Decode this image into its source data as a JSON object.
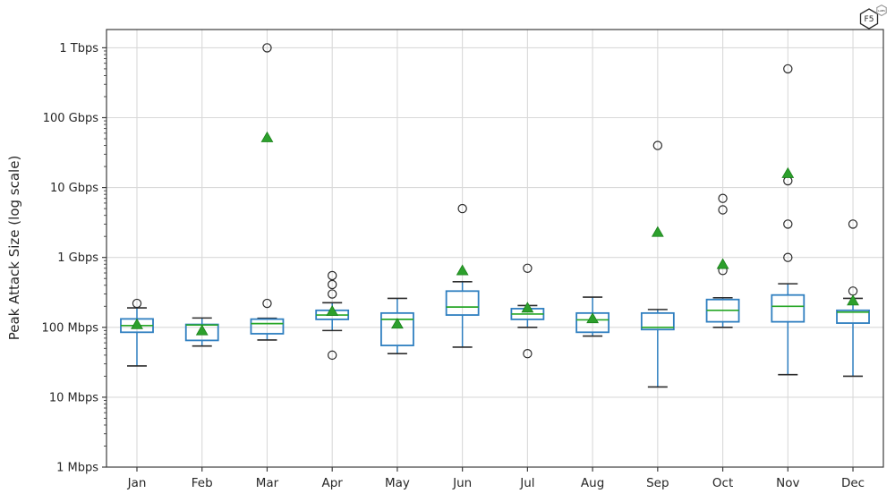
{
  "logo": {
    "text": "F5",
    "badge": "LABS"
  },
  "chart_data": {
    "type": "boxplot",
    "title": "",
    "xlabel": "",
    "ylabel": "Peak Attack Size (log scale)",
    "unit": "Mbps",
    "log_scale_y": true,
    "grid": true,
    "ylim_mbps": [
      1,
      1800000
    ],
    "yticks": [
      {
        "label": "1 Mbps",
        "mbps": 1
      },
      {
        "label": "10 Mbps",
        "mbps": 10
      },
      {
        "label": "100 Mbps",
        "mbps": 100
      },
      {
        "label": "1 Gbps",
        "mbps": 1000
      },
      {
        "label": "10 Gbps",
        "mbps": 10000
      },
      {
        "label": "100 Gbps",
        "mbps": 100000
      },
      {
        "label": "1 Tbps",
        "mbps": 1000000
      }
    ],
    "categories": [
      "Jan",
      "Feb",
      "Mar",
      "Apr",
      "May",
      "Jun",
      "Jul",
      "Aug",
      "Sep",
      "Oct",
      "Nov",
      "Dec"
    ],
    "series": [
      {
        "month": "Jan",
        "whisker_low": 28,
        "q1": 85,
        "median": 106,
        "q3": 132,
        "whisker_high": 190,
        "mean": 110,
        "outliers_mbps": [
          220
        ]
      },
      {
        "month": "Feb",
        "whisker_low": 54,
        "q1": 65,
        "median": 108,
        "q3": 110,
        "whisker_high": 136,
        "mean": 90,
        "outliers_mbps": []
      },
      {
        "month": "Mar",
        "whisker_low": 66,
        "q1": 81,
        "median": 113,
        "q3": 131,
        "whisker_high": 135,
        "mean": 52000,
        "outliers_mbps": [
          220,
          1000000
        ]
      },
      {
        "month": "Apr",
        "whisker_low": 90,
        "q1": 130,
        "median": 150,
        "q3": 175,
        "whisker_high": 225,
        "mean": 170,
        "outliers_mbps": [
          40,
          300,
          410,
          550
        ]
      },
      {
        "month": "May",
        "whisker_low": 42,
        "q1": 55,
        "median": 130,
        "q3": 160,
        "whisker_high": 260,
        "mean": 112,
        "outliers_mbps": []
      },
      {
        "month": "Jun",
        "whisker_low": 52,
        "q1": 150,
        "median": 195,
        "q3": 330,
        "whisker_high": 450,
        "mean": 650,
        "outliers_mbps": [
          5000
        ]
      },
      {
        "month": "Jul",
        "whisker_low": 100,
        "q1": 130,
        "median": 155,
        "q3": 185,
        "whisker_high": 205,
        "mean": 190,
        "outliers_mbps": [
          42,
          700
        ]
      },
      {
        "month": "Aug",
        "whisker_low": 75,
        "q1": 85,
        "median": 128,
        "q3": 160,
        "whisker_high": 270,
        "mean": 134,
        "outliers_mbps": []
      },
      {
        "month": "Sep",
        "whisker_low": 14,
        "q1": 93,
        "median": 100,
        "q3": 160,
        "whisker_high": 180,
        "mean": 2300,
        "outliers_mbps": [
          40000
        ]
      },
      {
        "month": "Oct",
        "whisker_low": 100,
        "q1": 120,
        "median": 175,
        "q3": 250,
        "whisker_high": 265,
        "mean": 800,
        "outliers_mbps": [
          650,
          4800,
          7000
        ]
      },
      {
        "month": "Nov",
        "whisker_low": 21,
        "q1": 120,
        "median": 200,
        "q3": 290,
        "whisker_high": 420,
        "mean": 16000,
        "outliers_mbps": [
          1000,
          3000,
          12500,
          500000
        ]
      },
      {
        "month": "Dec",
        "whisker_low": 20,
        "q1": 115,
        "median": 165,
        "q3": 175,
        "whisker_high": 260,
        "mean": 240,
        "outliers_mbps": [
          330,
          3000
        ]
      }
    ],
    "colors": {
      "box": "#2f7fc0",
      "median": "#26a626",
      "mean_marker": "#2ca02c",
      "mean_marker_edge": "#1a801a",
      "cap": "#2b2b2b",
      "outlier": "#2b2b2b",
      "grid": "#d9d9d9",
      "spine": "#3d3d3d",
      "tick_label": "#262626"
    }
  }
}
